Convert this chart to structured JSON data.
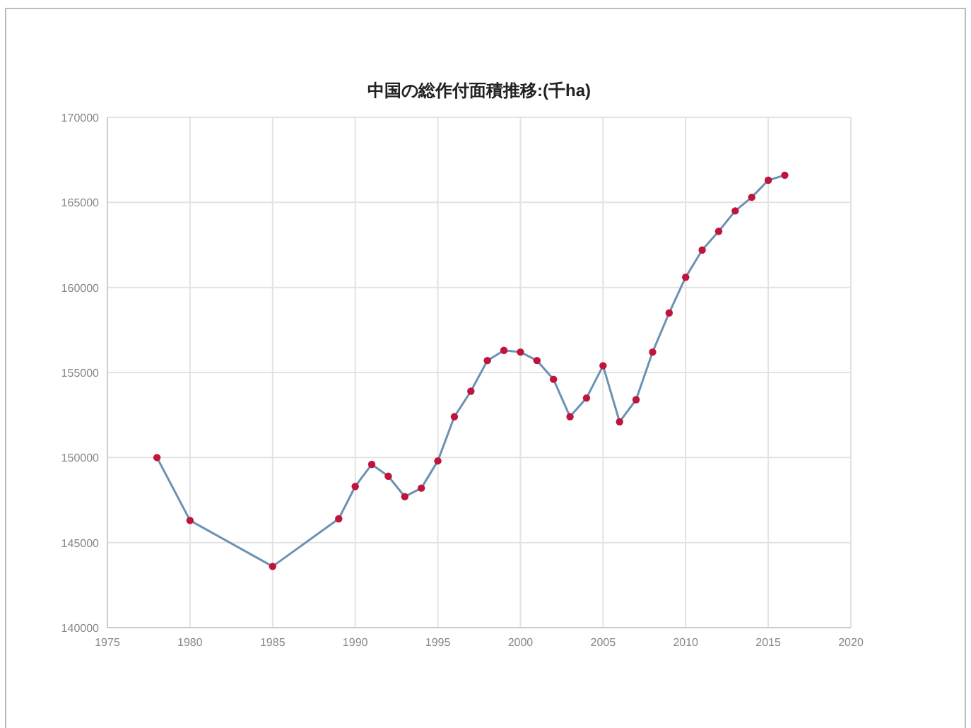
{
  "chart_data": {
    "type": "line",
    "title": "中国の総作付面積推移:(千ha)",
    "x": [
      1978,
      1980,
      1985,
      1989,
      1990,
      1991,
      1992,
      1993,
      1994,
      1995,
      1996,
      1997,
      1998,
      1999,
      2000,
      2001,
      2002,
      2003,
      2004,
      2005,
      2006,
      2007,
      2008,
      2009,
      2010,
      2011,
      2012,
      2013,
      2014,
      2015,
      2016
    ],
    "series": [
      {
        "color": "#6b92b4",
        "colors": [
          "#c0143c",
          "#c0143c",
          "#c0143c",
          "#c0143c",
          "#c0143c",
          "#c0143c",
          "#c0143c",
          "#c0143c",
          "#c0143c",
          "#c0143c",
          "#c0143c",
          "#c0143c",
          "#c0143c",
          "#c0143c",
          "#c0143c",
          "#c0143c",
          "#c0143c",
          "#c0143c",
          "#c0143c",
          "#c0143c",
          "#c0143c",
          "#c0143c",
          "#c0143c",
          "#c0143c",
          "#c0143c",
          "#c0143c",
          "#c0143c",
          "#c0143c",
          "#c0143c",
          "#c0143c",
          "#c0143c"
        ],
        "values": [
          150000,
          146300,
          143600,
          146400,
          148300,
          149600,
          148900,
          147700,
          148200,
          149800,
          152400,
          153900,
          155700,
          156300,
          156200,
          155700,
          154600,
          152400,
          153500,
          155400,
          152100,
          153400,
          156200,
          158500,
          160600,
          162200,
          163300,
          164500,
          165300,
          166300,
          166600
        ]
      }
    ],
    "marker": "circle",
    "xlim": [
      1975,
      2020
    ],
    "xticks": [
      1975,
      1980,
      1985,
      1990,
      1995,
      2000,
      2005,
      2010,
      2015,
      2020
    ],
    "ylim": [
      140000,
      170000
    ],
    "yticks": [
      140000,
      145000,
      150000,
      155000,
      160000,
      165000,
      170000
    ],
    "grid": true
  }
}
